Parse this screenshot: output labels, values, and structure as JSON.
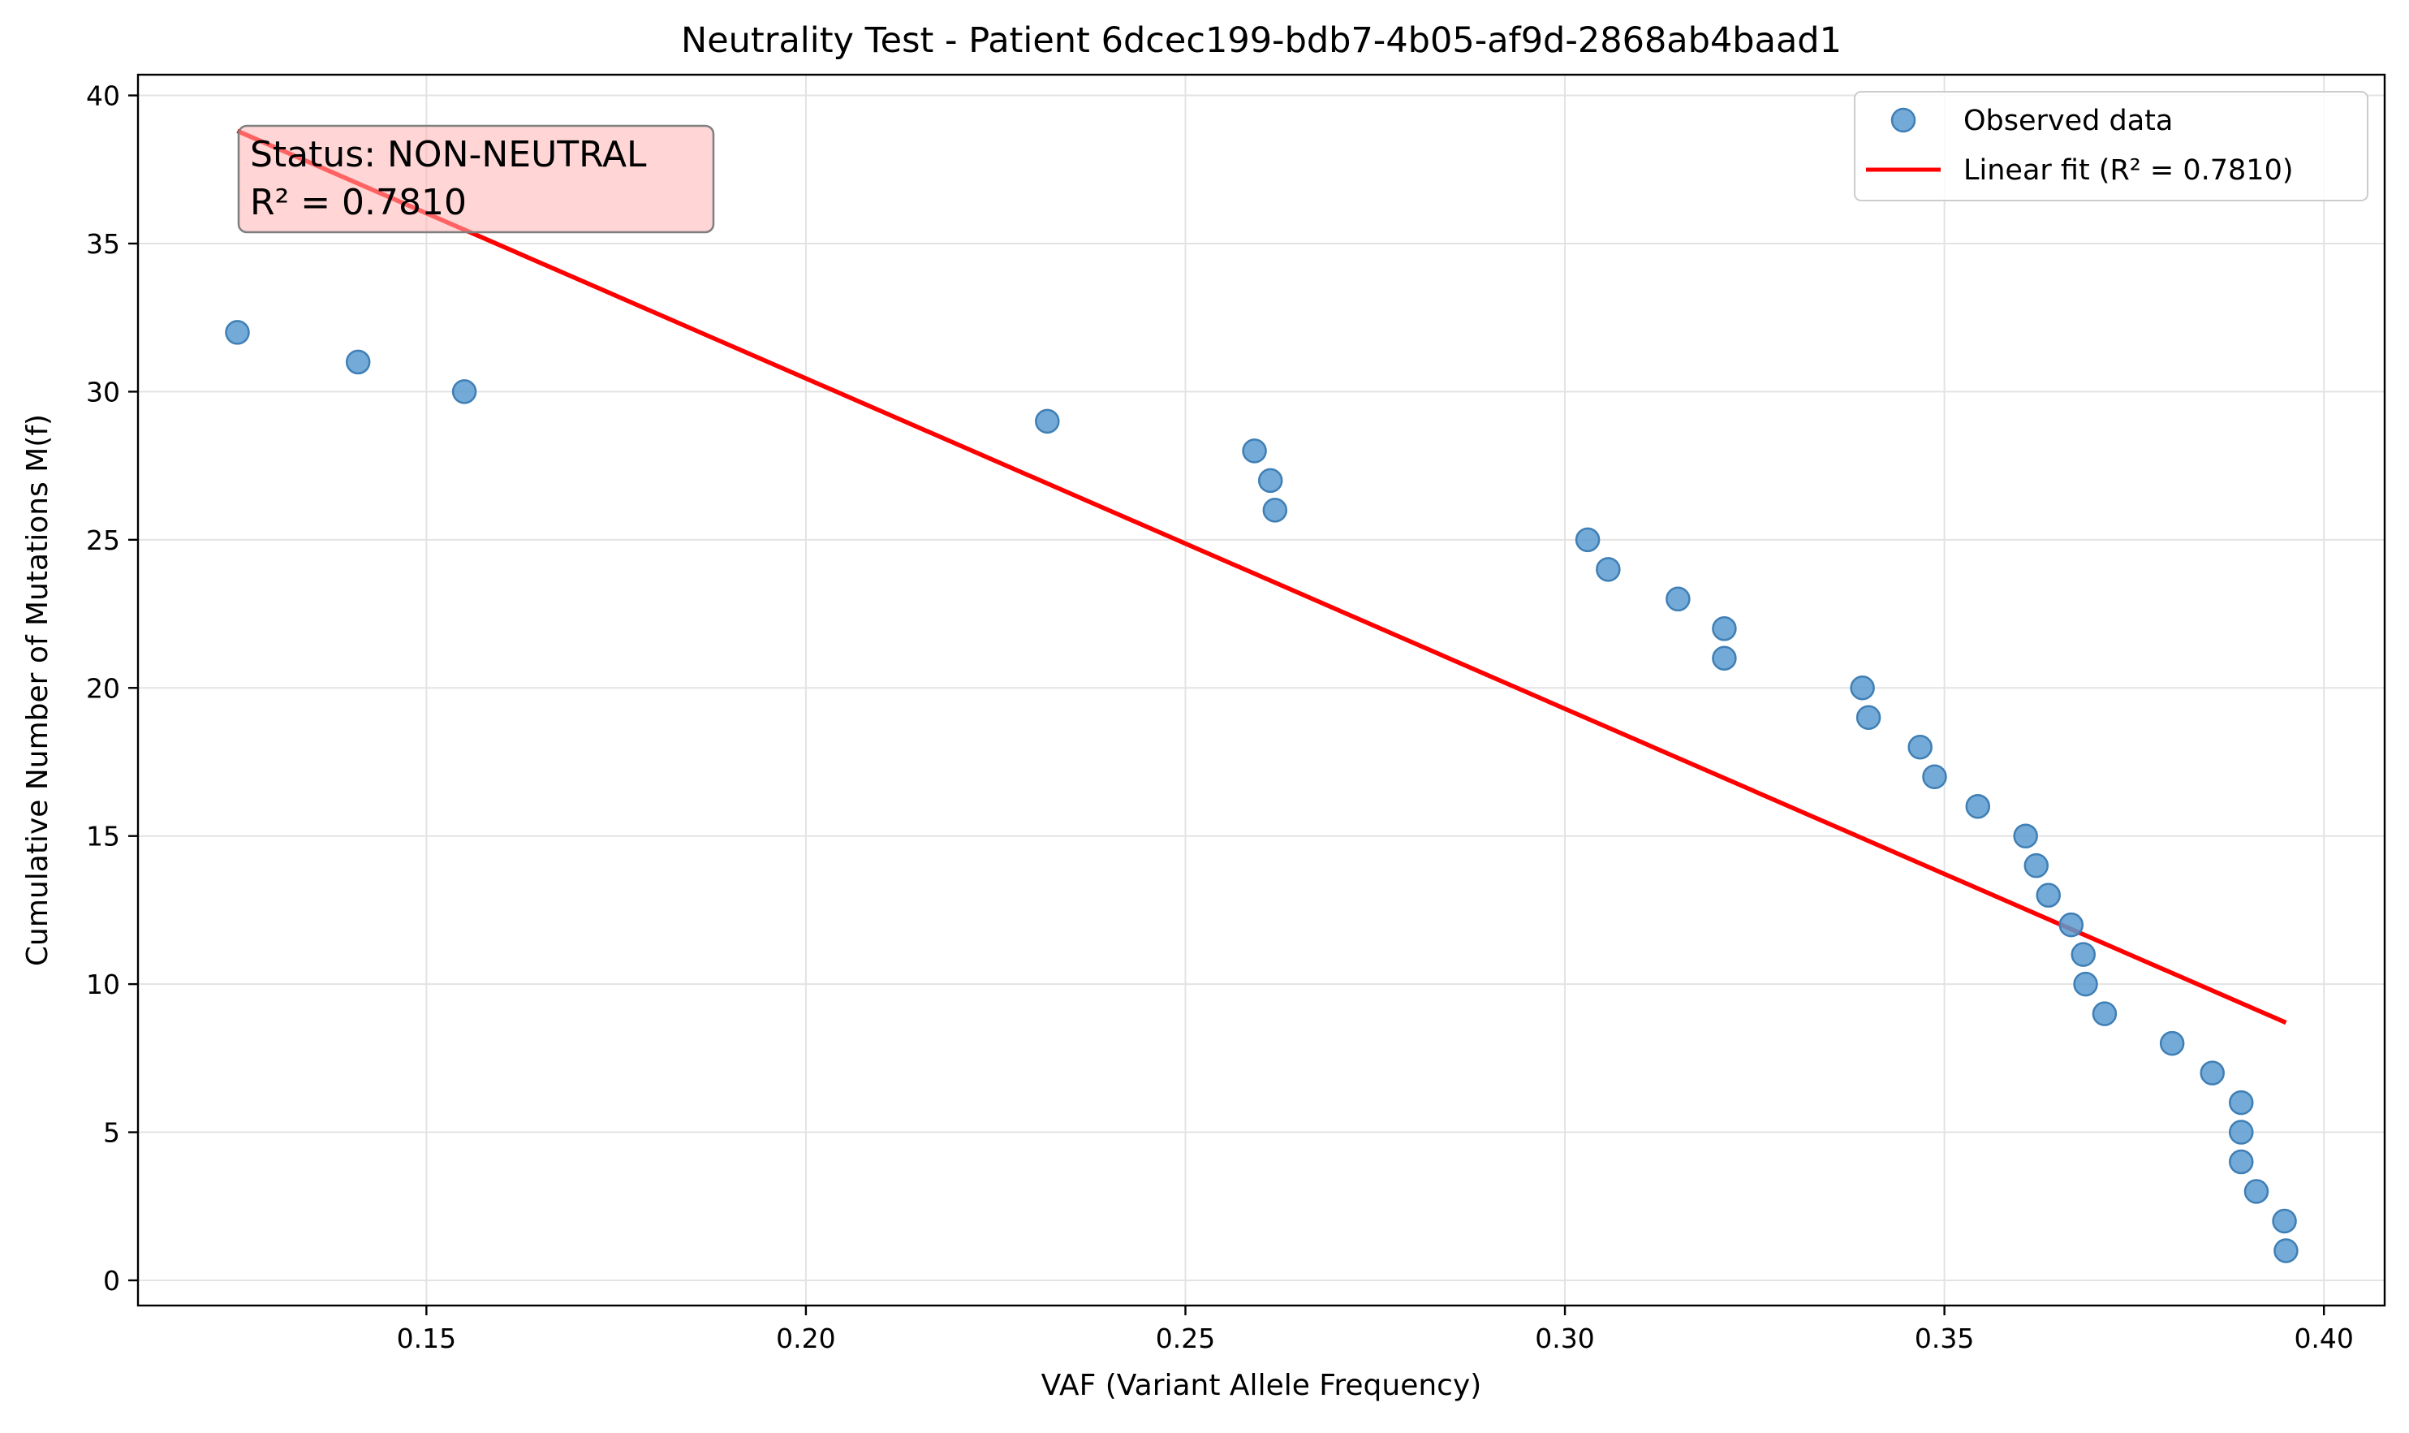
{
  "chart_data": {
    "type": "scatter",
    "title": "Neutrality Test - Patient 6dcec199-bdb7-4b05-af9d-2868ab4baad1",
    "xlabel": "VAF (Variant Allele Frequency)",
    "ylabel": "Cumulative Number of Mutations M(f)",
    "xlim": [
      0.112,
      0.408
    ],
    "ylim": [
      -0.85,
      40.7
    ],
    "xticks": [
      "0.15",
      "0.20",
      "0.25",
      "0.30",
      "0.35",
      "0.40"
    ],
    "yticks": [
      "0",
      "5",
      "10",
      "15",
      "20",
      "25",
      "30",
      "35",
      "40"
    ],
    "grid": true,
    "legend_position": "top-right",
    "series": [
      {
        "name": "Observed data",
        "kind": "scatter",
        "color": "#5b9bd0",
        "points": [
          [
            0.1251,
            32
          ],
          [
            0.141,
            31
          ],
          [
            0.155,
            30
          ],
          [
            0.2318,
            29
          ],
          [
            0.2591,
            28
          ],
          [
            0.2612,
            27
          ],
          [
            0.2618,
            26
          ],
          [
            0.303,
            25
          ],
          [
            0.3057,
            24
          ],
          [
            0.3149,
            23
          ],
          [
            0.321,
            22
          ],
          [
            0.321,
            21
          ],
          [
            0.3392,
            20
          ],
          [
            0.34,
            19
          ],
          [
            0.3468,
            18
          ],
          [
            0.3487,
            17
          ],
          [
            0.3544,
            16
          ],
          [
            0.3607,
            15
          ],
          [
            0.3621,
            14
          ],
          [
            0.3637,
            13
          ],
          [
            0.3667,
            12
          ],
          [
            0.3683,
            11
          ],
          [
            0.3686,
            10
          ],
          [
            0.3711,
            9
          ],
          [
            0.38,
            8
          ],
          [
            0.3853,
            7
          ],
          [
            0.3891,
            6
          ],
          [
            0.3891,
            5
          ],
          [
            0.3891,
            4
          ],
          [
            0.3911,
            3
          ],
          [
            0.3948,
            2
          ],
          [
            0.395,
            1
          ]
        ]
      },
      {
        "name": "Linear fit (R² = 0.7810)",
        "kind": "line",
        "color": "#ff0000",
        "points": [
          [
            0.1251,
            38.8
          ],
          [
            0.395,
            8.7
          ]
        ]
      }
    ],
    "annotation": {
      "line1": "Status: NON-NEUTRAL",
      "line2": "R² = 0.7810",
      "background": "#ffb3b3"
    }
  }
}
